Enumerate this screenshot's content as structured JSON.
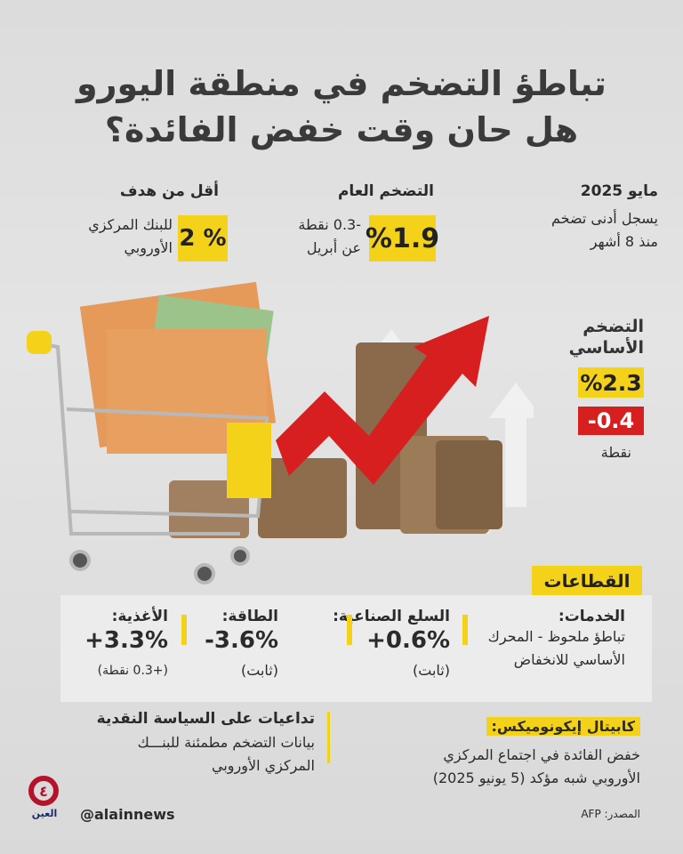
{
  "title": {
    "line1": "تباطؤ التضخم في منطقة اليورو",
    "line2": "هل حان وقت خفض الفائدة؟"
  },
  "top": {
    "date": {
      "heading": "مايو 2025",
      "line1": "يسجل أدنى تضخم",
      "line2": "منذ 8 أشهر"
    },
    "headline": {
      "heading": "التضخم العام",
      "value": "%1.9",
      "change": "-0.3 نقطة",
      "change_note": "عن أبريل"
    },
    "target": {
      "heading": "أقل من هدف",
      "value": "2 %",
      "line1": "للبنك المركزي",
      "line2": "الأوروبي"
    }
  },
  "core": {
    "heading_line1": "التضخم",
    "heading_line2": "الأساسي",
    "value": "%2.3",
    "change": "-0.4",
    "unit": "نقطة"
  },
  "sectors": {
    "label": "القطاعات",
    "items": [
      {
        "name": "الخدمات:",
        "line1": "تباطؤ ملحوظ - المحرك",
        "line2": "الأساسي للانخفاض"
      },
      {
        "name": "السلع الصناعية:",
        "value": "+0.6%",
        "note": "(ثابت)"
      },
      {
        "name": "الطاقة:",
        "value": "-3.6%",
        "note": "(ثابت)"
      },
      {
        "name": "الأغذية:",
        "value": "+3.3%",
        "note": "(+0.3 نقطة)"
      }
    ]
  },
  "capital": {
    "label": "كابيتال إيكونوميكس:",
    "line1": "خفض الفائدة في اجتماع المركزي",
    "line2": "الأوروبي شبه مؤكد (5 يونيو 2025)"
  },
  "policy": {
    "heading": "تداعيات على السياسة النقدية",
    "line1": "بيانات التضخم مطمئنة للبنـــك",
    "line2": "المركزي الأوروبي"
  },
  "footer": {
    "source": "المصدر: AFP",
    "handle": "@alainnews",
    "logo_text": "العين"
  },
  "colors": {
    "yellow": "#f5d21a",
    "red": "#d81f1f",
    "logo": "#b5122b"
  }
}
